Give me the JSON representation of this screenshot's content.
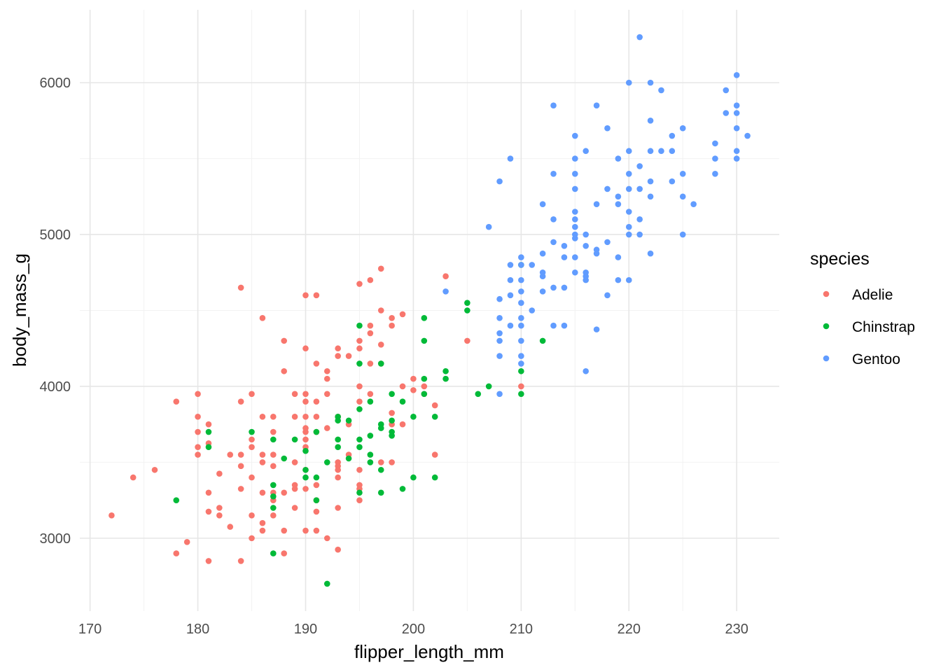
{
  "chart_data": {
    "type": "scatter",
    "xlabel": "flipper_length_mm",
    "ylabel": "body_mass_g",
    "xlim": [
      169.05,
      233.95
    ],
    "ylim": [
      2520,
      6480
    ],
    "xticks": [
      170,
      180,
      190,
      200,
      210,
      220,
      230
    ],
    "yticks": [
      3000,
      4000,
      5000,
      6000
    ],
    "xminor": [
      175,
      185,
      195,
      205,
      215,
      225
    ],
    "yminor": [
      3500,
      4500,
      5500
    ],
    "grid": true,
    "legend": {
      "title": "species",
      "placement": "right"
    },
    "series": [
      {
        "name": "Adelie",
        "color": "#F8766D",
        "points": [
          [
            172,
            3150
          ],
          [
            174,
            3400
          ],
          [
            176,
            3450
          ],
          [
            178,
            3900
          ],
          [
            178,
            2900
          ],
          [
            179,
            2975
          ],
          [
            180,
            3950
          ],
          [
            180,
            3800
          ],
          [
            180,
            3700
          ],
          [
            180,
            3600
          ],
          [
            180,
            3550
          ],
          [
            181,
            3750
          ],
          [
            181,
            3625
          ],
          [
            181,
            3300
          ],
          [
            181,
            3175
          ],
          [
            181,
            2850
          ],
          [
            182,
            3425
          ],
          [
            182,
            3200
          ],
          [
            182,
            3150
          ],
          [
            183,
            3550
          ],
          [
            183,
            3075
          ],
          [
            184,
            4650
          ],
          [
            184,
            3900
          ],
          [
            184,
            3550
          ],
          [
            184,
            3475
          ],
          [
            184,
            3325
          ],
          [
            184,
            2850
          ],
          [
            185,
            3950
          ],
          [
            185,
            3650
          ],
          [
            185,
            3600
          ],
          [
            185,
            3400
          ],
          [
            185,
            3150
          ],
          [
            185,
            3000
          ],
          [
            186,
            4450
          ],
          [
            186,
            3800
          ],
          [
            186,
            3550
          ],
          [
            186,
            3500
          ],
          [
            186,
            3300
          ],
          [
            186,
            3100
          ],
          [
            186,
            3050
          ],
          [
            187,
            3800
          ],
          [
            187,
            3700
          ],
          [
            187,
            3550
          ],
          [
            187,
            3475
          ],
          [
            187,
            3300
          ],
          [
            187,
            3150
          ],
          [
            187,
            3250
          ],
          [
            188,
            4300
          ],
          [
            188,
            4100
          ],
          [
            188,
            3300
          ],
          [
            188,
            3050
          ],
          [
            188,
            2900
          ],
          [
            189,
            3950
          ],
          [
            189,
            3800
          ],
          [
            189,
            3500
          ],
          [
            189,
            3350
          ],
          [
            189,
            3325
          ],
          [
            189,
            3200
          ],
          [
            190,
            4600
          ],
          [
            190,
            4250
          ],
          [
            190,
            3950
          ],
          [
            190,
            3900
          ],
          [
            190,
            3800
          ],
          [
            190,
            3725
          ],
          [
            190,
            3700
          ],
          [
            190,
            3650
          ],
          [
            190,
            3600
          ],
          [
            190,
            3450
          ],
          [
            190,
            3325
          ],
          [
            190,
            3050
          ],
          [
            191,
            4600
          ],
          [
            191,
            4150
          ],
          [
            191,
            3900
          ],
          [
            191,
            3800
          ],
          [
            191,
            3700
          ],
          [
            191,
            3350
          ],
          [
            191,
            3250
          ],
          [
            191,
            3175
          ],
          [
            191,
            3050
          ],
          [
            192,
            4100
          ],
          [
            192,
            4050
          ],
          [
            192,
            3950
          ],
          [
            192,
            3725
          ],
          [
            192,
            3000
          ],
          [
            193,
            4250
          ],
          [
            193,
            4200
          ],
          [
            193,
            3800
          ],
          [
            193,
            3500
          ],
          [
            193,
            3475
          ],
          [
            193,
            3450
          ],
          [
            193,
            3400
          ],
          [
            193,
            3200
          ],
          [
            193,
            2925
          ],
          [
            194,
            4200
          ],
          [
            194,
            3750
          ],
          [
            194,
            3550
          ],
          [
            195,
            4675
          ],
          [
            195,
            4300
          ],
          [
            195,
            4250
          ],
          [
            195,
            4000
          ],
          [
            195,
            3900
          ],
          [
            195,
            3450
          ],
          [
            195,
            3350
          ],
          [
            195,
            3325
          ],
          [
            195,
            3250
          ],
          [
            196,
            4700
          ],
          [
            196,
            4400
          ],
          [
            196,
            4350
          ],
          [
            196,
            4150
          ],
          [
            196,
            3950
          ],
          [
            197,
            4775
          ],
          [
            197,
            4500
          ],
          [
            197,
            4275
          ],
          [
            197,
            4150
          ],
          [
            197,
            3500
          ],
          [
            198,
            4450
          ],
          [
            198,
            4400
          ],
          [
            198,
            3825
          ],
          [
            198,
            3750
          ],
          [
            198,
            3500
          ],
          [
            199,
            4475
          ],
          [
            199,
            4000
          ],
          [
            199,
            3750
          ],
          [
            200,
            4050
          ],
          [
            200,
            3975
          ],
          [
            201,
            4000
          ],
          [
            201,
            3950
          ],
          [
            202,
            3875
          ],
          [
            202,
            3550
          ],
          [
            203,
            4725
          ],
          [
            205,
            4300
          ],
          [
            210,
            4000
          ]
        ]
      },
      {
        "name": "Chinstrap",
        "color": "#00BA38",
        "points": [
          [
            178,
            3250
          ],
          [
            181,
            3700
          ],
          [
            181,
            3600
          ],
          [
            185,
            3700
          ],
          [
            187,
            3650
          ],
          [
            187,
            3350
          ],
          [
            187,
            3275
          ],
          [
            187,
            3200
          ],
          [
            187,
            2900
          ],
          [
            188,
            3525
          ],
          [
            189,
            3650
          ],
          [
            190,
            3575
          ],
          [
            190,
            3450
          ],
          [
            190,
            3400
          ],
          [
            191,
            3700
          ],
          [
            191,
            3400
          ],
          [
            191,
            3250
          ],
          [
            192,
            3500
          ],
          [
            192,
            2700
          ],
          [
            193,
            3800
          ],
          [
            193,
            3775
          ],
          [
            193,
            3650
          ],
          [
            193,
            3600
          ],
          [
            194,
            3775
          ],
          [
            194,
            3525
          ],
          [
            195,
            4400
          ],
          [
            195,
            4150
          ],
          [
            195,
            3850
          ],
          [
            195,
            3650
          ],
          [
            195,
            3600
          ],
          [
            195,
            3300
          ],
          [
            196,
            3900
          ],
          [
            196,
            3675
          ],
          [
            196,
            3550
          ],
          [
            196,
            3500
          ],
          [
            197,
            4150
          ],
          [
            197,
            3750
          ],
          [
            197,
            3725
          ],
          [
            197,
            3450
          ],
          [
            197,
            3300
          ],
          [
            198,
            3950
          ],
          [
            198,
            3775
          ],
          [
            198,
            3700
          ],
          [
            198,
            3675
          ],
          [
            199,
            3900
          ],
          [
            199,
            3325
          ],
          [
            200,
            3800
          ],
          [
            200,
            3400
          ],
          [
            201,
            4450
          ],
          [
            201,
            4300
          ],
          [
            201,
            4050
          ],
          [
            201,
            3950
          ],
          [
            202,
            3800
          ],
          [
            202,
            3400
          ],
          [
            203,
            4100
          ],
          [
            203,
            4050
          ],
          [
            205,
            4550
          ],
          [
            205,
            4500
          ],
          [
            206,
            3950
          ],
          [
            207,
            4000
          ],
          [
            210,
            4800
          ],
          [
            210,
            4100
          ],
          [
            210,
            3950
          ],
          [
            212,
            4300
          ]
        ]
      },
      {
        "name": "Gentoo",
        "color": "#619CFF",
        "points": [
          [
            203,
            4625
          ],
          [
            207,
            5050
          ],
          [
            208,
            5350
          ],
          [
            208,
            4575
          ],
          [
            208,
            4450
          ],
          [
            208,
            4350
          ],
          [
            208,
            4300
          ],
          [
            208,
            4200
          ],
          [
            208,
            3950
          ],
          [
            209,
            5500
          ],
          [
            209,
            4800
          ],
          [
            209,
            4700
          ],
          [
            209,
            4600
          ],
          [
            209,
            4400
          ],
          [
            210,
            4850
          ],
          [
            210,
            4800
          ],
          [
            210,
            4700
          ],
          [
            210,
            4625
          ],
          [
            210,
            4550
          ],
          [
            210,
            4450
          ],
          [
            210,
            4400
          ],
          [
            210,
            4300
          ],
          [
            210,
            4200
          ],
          [
            210,
            4150
          ],
          [
            211,
            4800
          ],
          [
            211,
            4500
          ],
          [
            212,
            5200
          ],
          [
            212,
            4875
          ],
          [
            212,
            4750
          ],
          [
            212,
            4725
          ],
          [
            212,
            4625
          ],
          [
            213,
            5850
          ],
          [
            213,
            5400
          ],
          [
            213,
            5100
          ],
          [
            213,
            4950
          ],
          [
            213,
            4650
          ],
          [
            213,
            4400
          ],
          [
            214,
            4925
          ],
          [
            214,
            4850
          ],
          [
            214,
            4650
          ],
          [
            214,
            4400
          ],
          [
            215,
            5650
          ],
          [
            215,
            5500
          ],
          [
            215,
            5400
          ],
          [
            215,
            5300
          ],
          [
            215,
            5150
          ],
          [
            215,
            5100
          ],
          [
            215,
            5050
          ],
          [
            215,
            5000
          ],
          [
            215,
            4975
          ],
          [
            215,
            4850
          ],
          [
            215,
            4750
          ],
          [
            216,
            5550
          ],
          [
            216,
            5000
          ],
          [
            216,
            4925
          ],
          [
            216,
            4750
          ],
          [
            216,
            4725
          ],
          [
            216,
            4700
          ],
          [
            216,
            4100
          ],
          [
            217,
            5850
          ],
          [
            217,
            5200
          ],
          [
            217,
            4900
          ],
          [
            217,
            4875
          ],
          [
            217,
            4375
          ],
          [
            218,
            5700
          ],
          [
            218,
            5300
          ],
          [
            218,
            4950
          ],
          [
            218,
            4600
          ],
          [
            219,
            5500
          ],
          [
            219,
            5250
          ],
          [
            219,
            5200
          ],
          [
            219,
            4850
          ],
          [
            219,
            4700
          ],
          [
            220,
            6000
          ],
          [
            220,
            5550
          ],
          [
            220,
            5400
          ],
          [
            220,
            5300
          ],
          [
            220,
            5150
          ],
          [
            220,
            5050
          ],
          [
            220,
            5000
          ],
          [
            220,
            4700
          ],
          [
            221,
            6300
          ],
          [
            221,
            5450
          ],
          [
            221,
            5300
          ],
          [
            221,
            5100
          ],
          [
            221,
            5000
          ],
          [
            222,
            6000
          ],
          [
            222,
            5750
          ],
          [
            222,
            5550
          ],
          [
            222,
            5350
          ],
          [
            222,
            5250
          ],
          [
            222,
            4875
          ],
          [
            223,
            5950
          ],
          [
            223,
            5550
          ],
          [
            224,
            5650
          ],
          [
            224,
            5550
          ],
          [
            224,
            5350
          ],
          [
            225,
            5700
          ],
          [
            225,
            5400
          ],
          [
            225,
            5250
          ],
          [
            225,
            5000
          ],
          [
            226,
            5200
          ],
          [
            228,
            5600
          ],
          [
            228,
            5500
          ],
          [
            228,
            5400
          ],
          [
            229,
            5950
          ],
          [
            229,
            5800
          ],
          [
            230,
            6050
          ],
          [
            230,
            5850
          ],
          [
            230,
            5800
          ],
          [
            230,
            5700
          ],
          [
            230,
            5550
          ],
          [
            230,
            5500
          ],
          [
            231,
            5650
          ]
        ]
      }
    ]
  }
}
